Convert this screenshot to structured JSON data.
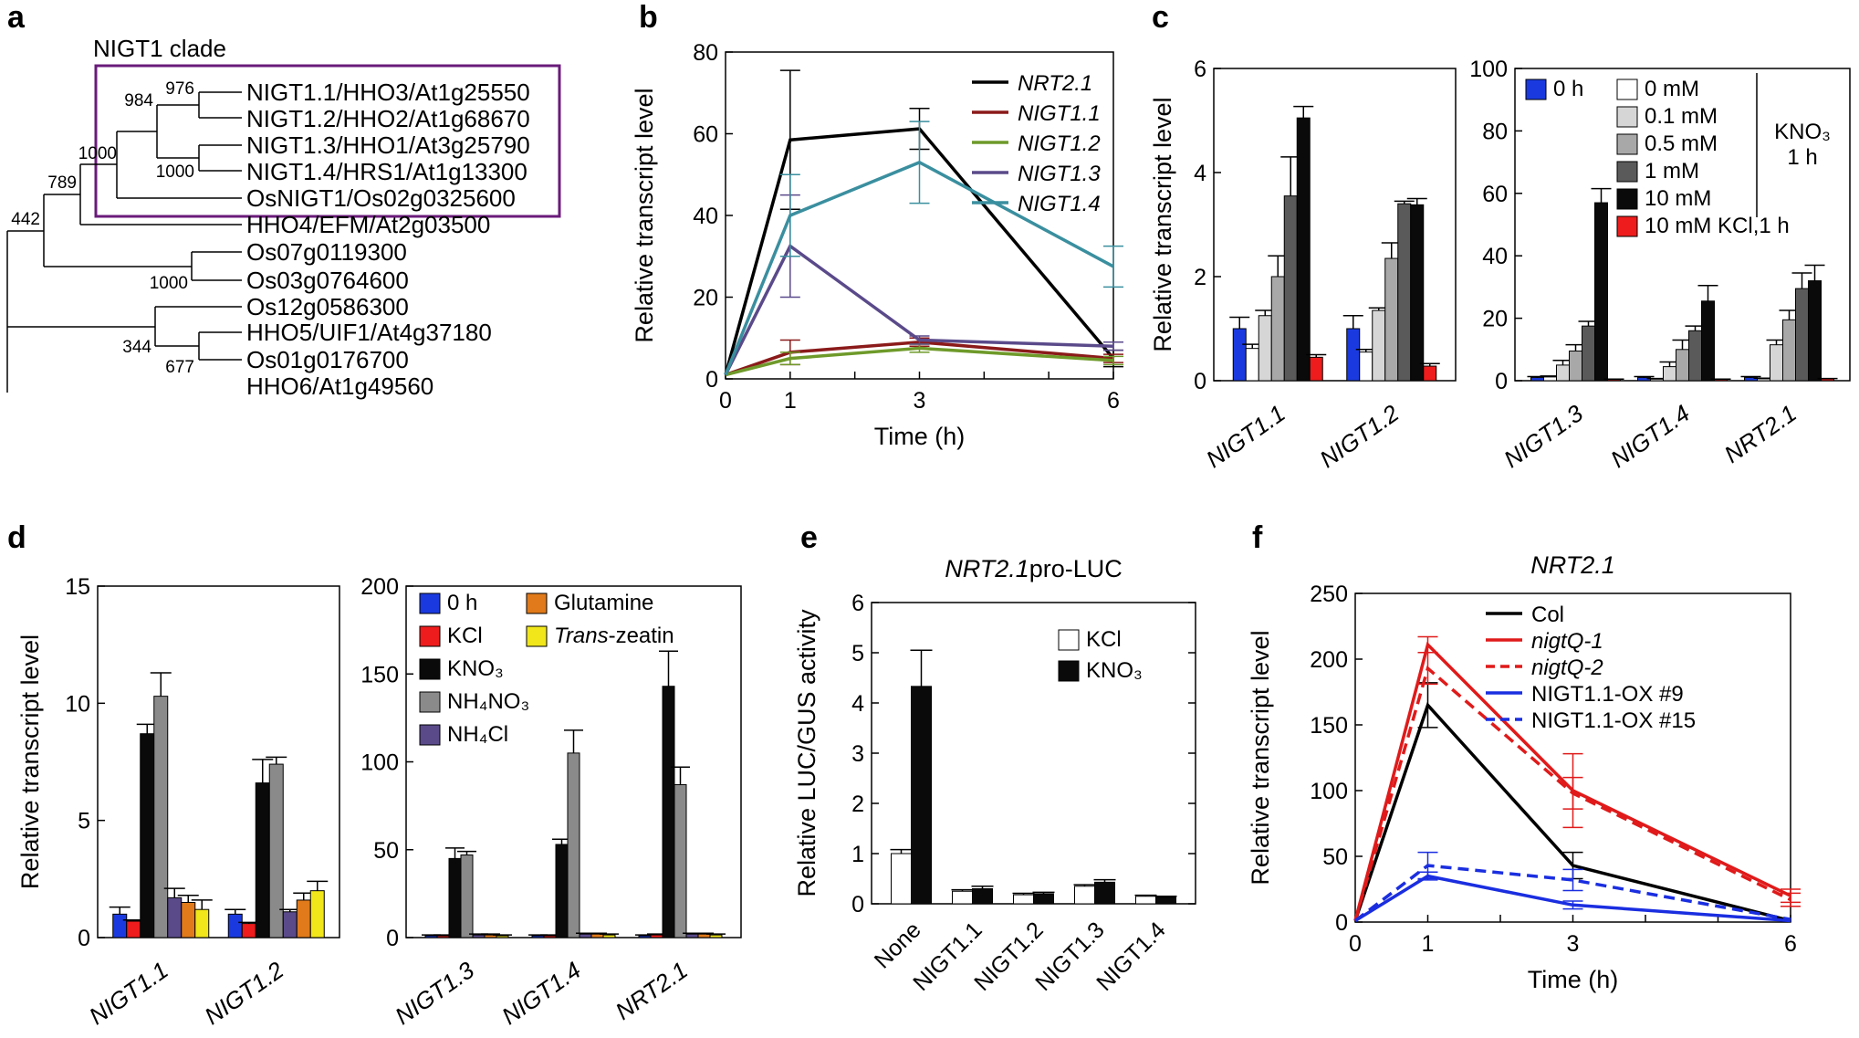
{
  "panel_labels": [
    "a",
    "b",
    "c",
    "d",
    "e",
    "f"
  ],
  "tree": {
    "clade_label": "NIGT1 clade",
    "clade_color": "#6a1b7a",
    "leaves": [
      {
        "name": "NIGT1.1/HHO3/At1g25550",
        "color": "#000000"
      },
      {
        "name": "NIGT1.2/HHO2/At1g68670",
        "color": "#000000"
      },
      {
        "name": "NIGT1.3/HHO1/At3g25790",
        "color": "#000000"
      },
      {
        "name": "NIGT1.4/HRS1/At1g13300",
        "color": "#000000"
      },
      {
        "name": "OsNIGT1/Os02g0325600",
        "color": "#1a1ad6"
      },
      {
        "name": "HHO4/EFM/At2g03500",
        "color": "#000000"
      },
      {
        "name": "Os07g0119300",
        "color": "#1a1ad6"
      },
      {
        "name": "Os03g0764600",
        "color": "#1a1ad6"
      },
      {
        "name": "Os12g0586300",
        "color": "#1a1ad6"
      },
      {
        "name": "HHO5/UIF1/At4g37180",
        "color": "#000000"
      },
      {
        "name": "Os01g0176700",
        "color": "#1a1ad6"
      },
      {
        "name": "HHO6/At1g49560",
        "color": "#000000"
      }
    ],
    "bootstraps": [
      "976",
      "984",
      "1000",
      "1000",
      "789",
      "442",
      "1000",
      "344",
      "677"
    ]
  },
  "chart_data": [
    {
      "id": "b",
      "type": "line",
      "title": "",
      "xlabel": "Time (h)",
      "ylabel": "Relative transcript level",
      "x": [
        0,
        1,
        3,
        6
      ],
      "xlim": [
        0,
        6
      ],
      "ylim": [
        0,
        80
      ],
      "xticks": [
        0,
        1,
        3,
        6
      ],
      "yticks": [
        0,
        20,
        40,
        60,
        80
      ],
      "series": [
        {
          "name": "NRT2.1",
          "color": "#000000",
          "values": [
            1,
            58.5,
            61.2,
            5
          ],
          "err": [
            0,
            17,
            5,
            2
          ]
        },
        {
          "name": "NIGT1.1",
          "color": "#8b1a1a",
          "values": [
            1,
            6.5,
            9,
            5
          ],
          "err": [
            0,
            3,
            1,
            1
          ]
        },
        {
          "name": "NIGT1.2",
          "color": "#6e9a2a",
          "values": [
            1,
            5,
            7.5,
            4.5
          ],
          "err": [
            0,
            1.5,
            1,
            1
          ]
        },
        {
          "name": "NIGT1.3",
          "color": "#5a4a8a",
          "values": [
            1,
            32.5,
            9.5,
            8
          ],
          "err": [
            0,
            12.5,
            1,
            1
          ]
        },
        {
          "name": "NIGT1.4",
          "color": "#3a8f9f",
          "values": [
            1,
            40,
            53,
            27.5
          ],
          "err": [
            0,
            10,
            10,
            5
          ]
        }
      ]
    },
    {
      "id": "c-left",
      "type": "bar",
      "ylabel": "Relative transcript level",
      "categories": [
        "NIGT1.1",
        "NIGT1.2"
      ],
      "ylim": [
        0,
        6
      ],
      "yticks": [
        0,
        2,
        4,
        6
      ],
      "series": [
        {
          "name": "0 h",
          "color": "#1a3adf",
          "values": [
            1.0,
            1.0
          ],
          "err": [
            0.22,
            0.25
          ]
        },
        {
          "name": "0 mM",
          "color": "#ffffff",
          "values": [
            0.62,
            0.55
          ],
          "err": [
            0.08,
            0.05
          ]
        },
        {
          "name": "0.1 mM",
          "color": "#d6d6d6",
          "values": [
            1.25,
            1.35
          ],
          "err": [
            0.1,
            0.05
          ]
        },
        {
          "name": "0.5 mM",
          "color": "#a8a8a8",
          "values": [
            2.0,
            2.35
          ],
          "err": [
            0.4,
            0.3
          ]
        },
        {
          "name": "1 mM",
          "color": "#5a5a5a",
          "values": [
            3.55,
            3.4
          ],
          "err": [
            0.75,
            0.05
          ]
        },
        {
          "name": "10 mM",
          "color": "#0a0a0a",
          "values": [
            5.05,
            3.38
          ],
          "err": [
            0.22,
            0.12
          ]
        },
        {
          "name": "10 mM KCl,1 h",
          "color": "#ee1c1c",
          "values": [
            0.45,
            0.28
          ],
          "err": [
            0.05,
            0.05
          ]
        }
      ]
    },
    {
      "id": "c-right",
      "type": "bar",
      "categories": [
        "NIGT1.3",
        "NIGT1.4",
        "NRT2.1"
      ],
      "ylim": [
        0,
        100
      ],
      "yticks": [
        0,
        20,
        40,
        60,
        80,
        100
      ],
      "legend_note": [
        "KNO₃",
        "1 h"
      ],
      "series": [
        {
          "name": "0 h",
          "color": "#1a3adf",
          "values": [
            1.0,
            1.0,
            1.0
          ],
          "err": [
            0.3,
            0.3,
            0.3
          ]
        },
        {
          "name": "0 mM",
          "color": "#ffffff",
          "values": [
            1.2,
            0.5,
            0.6
          ],
          "err": [
            0.3,
            0.2,
            0.2
          ]
        },
        {
          "name": "0.1 mM",
          "color": "#d6d6d6",
          "values": [
            5,
            4.5,
            11.5
          ],
          "err": [
            1.5,
            1.5,
            1.5
          ]
        },
        {
          "name": "0.5 mM",
          "color": "#a8a8a8",
          "values": [
            9.5,
            10,
            19.5
          ],
          "err": [
            2,
            3,
            3
          ]
        },
        {
          "name": "1 mM",
          "color": "#5a5a5a",
          "values": [
            17.5,
            16,
            29.5
          ],
          "err": [
            1.5,
            1.5,
            5
          ]
        },
        {
          "name": "10 mM",
          "color": "#0a0a0a",
          "values": [
            57,
            25.5,
            32
          ],
          "err": [
            4.5,
            5,
            5
          ]
        },
        {
          "name": "10 mM KCl,1 h",
          "color": "#ee1c1c",
          "values": [
            0.4,
            0.4,
            0.6
          ],
          "err": [
            0.1,
            0.1,
            0.1
          ]
        }
      ]
    },
    {
      "id": "d-left",
      "type": "bar",
      "ylabel": "Relative transcript level",
      "categories": [
        "NIGT1.1",
        "NIGT1.2"
      ],
      "ylim": [
        0,
        15
      ],
      "yticks": [
        0,
        5,
        10,
        15
      ],
      "series": [
        {
          "name": "0 h",
          "color": "#1a3adf",
          "values": [
            1.0,
            1.0
          ],
          "err": [
            0.3,
            0.2
          ]
        },
        {
          "name": "KCl",
          "color": "#ee1c1c",
          "values": [
            0.7,
            0.6
          ],
          "err": [
            0.05,
            0.05
          ]
        },
        {
          "name": "KNO₃",
          "color": "#0a0a0a",
          "values": [
            8.7,
            6.6
          ],
          "err": [
            0.4,
            1.0
          ]
        },
        {
          "name": "NH₄NO₃",
          "color": "#8a8a8a",
          "values": [
            10.3,
            7.4
          ],
          "err": [
            1.0,
            0.3
          ]
        },
        {
          "name": "NH₄Cl",
          "color": "#5a4a8a",
          "values": [
            1.7,
            1.1
          ],
          "err": [
            0.4,
            0.1
          ]
        },
        {
          "name": "Glutamine",
          "color": "#e07a1a",
          "values": [
            1.5,
            1.6
          ],
          "err": [
            0.3,
            0.3
          ]
        },
        {
          "name": "Trans-zeatin",
          "color": "#f0e61a",
          "values": [
            1.2,
            2.0
          ],
          "err": [
            0.4,
            0.4
          ]
        }
      ]
    },
    {
      "id": "d-right",
      "type": "bar",
      "categories": [
        "NIGT1.3",
        "NIGT1.4",
        "NRT2.1"
      ],
      "ylim": [
        0,
        200
      ],
      "yticks": [
        0,
        50,
        100,
        150,
        200
      ],
      "series": [
        {
          "name": "0 h",
          "color": "#1a3adf",
          "values": [
            1,
            1,
            1
          ],
          "err": [
            0.5,
            0.5,
            0.5
          ]
        },
        {
          "name": "KCl",
          "color": "#ee1c1c",
          "values": [
            1,
            1,
            1.5
          ],
          "err": [
            0.5,
            0.5,
            0.5
          ]
        },
        {
          "name": "KNO₃",
          "color": "#0a0a0a",
          "values": [
            45,
            53,
            143
          ],
          "err": [
            6,
            3,
            20
          ]
        },
        {
          "name": "NH₄NO₃",
          "color": "#8a8a8a",
          "values": [
            47,
            105,
            87
          ],
          "err": [
            2,
            13,
            10
          ]
        },
        {
          "name": "NH₄Cl",
          "color": "#5a4a8a",
          "values": [
            1.5,
            2,
            2
          ],
          "err": [
            0.5,
            0.5,
            0.5
          ]
        },
        {
          "name": "Glutamine",
          "color": "#e07a1a",
          "values": [
            1.5,
            2,
            2
          ],
          "err": [
            0.5,
            0.5,
            0.5
          ]
        },
        {
          "name": "Trans-zeatin",
          "color": "#f0e61a",
          "values": [
            1,
            1.5,
            1.5
          ],
          "err": [
            0.5,
            0.5,
            0.5
          ]
        }
      ]
    },
    {
      "id": "e",
      "type": "bar",
      "title": "NRT2.1pro-LUC",
      "ylabel": "Relative LUC/GUS activity",
      "categories": [
        "None",
        "NIGT1.1",
        "NIGT1.2",
        "NIGT1.3",
        "NIGT1.4"
      ],
      "ylim": [
        0,
        6
      ],
      "yticks": [
        0,
        1,
        2,
        3,
        4,
        5,
        6
      ],
      "series": [
        {
          "name": "KCl",
          "color": "#ffffff",
          "values": [
            1.0,
            0.25,
            0.18,
            0.35,
            0.15
          ],
          "err": [
            0.08,
            0.03,
            0.03,
            0.03,
            0.02
          ]
        },
        {
          "name": "KNO₃",
          "color": "#0a0a0a",
          "values": [
            4.33,
            0.3,
            0.2,
            0.43,
            0.13
          ],
          "err": [
            0.72,
            0.05,
            0.03,
            0.05,
            0.02
          ]
        }
      ]
    },
    {
      "id": "f",
      "type": "line",
      "title": "NRT2.1",
      "xlabel": "Time (h)",
      "ylabel": "Relative transcript level",
      "x": [
        0,
        1,
        3,
        6
      ],
      "xlim": [
        0,
        6
      ],
      "ylim": [
        0,
        250
      ],
      "xticks": [
        0,
        1,
        3,
        6
      ],
      "yticks": [
        0,
        50,
        100,
        150,
        200,
        250
      ],
      "series": [
        {
          "name": "Col",
          "color": "#000000",
          "dash": false,
          "values": [
            1,
            165,
            43,
            1
          ],
          "err": [
            0,
            17,
            10,
            0
          ]
        },
        {
          "name": "nigtQ-1",
          "color": "#e01a1a",
          "dash": false,
          "values": [
            1,
            211,
            100,
            20
          ],
          "err": [
            0,
            6,
            28,
            5
          ]
        },
        {
          "name": "nigtQ-2",
          "color": "#e01a1a",
          "dash": true,
          "values": [
            1,
            193,
            98,
            17
          ],
          "err": [
            0,
            12,
            12,
            5
          ]
        },
        {
          "name": "NIGT1.1-OX #9",
          "color": "#1a2ee0",
          "dash": false,
          "values": [
            1,
            35,
            13,
            1
          ],
          "err": [
            0,
            3,
            3,
            0
          ]
        },
        {
          "name": "NIGT1.1-OX #15",
          "color": "#1a2ee0",
          "dash": true,
          "values": [
            1,
            43,
            32,
            2
          ],
          "err": [
            0,
            10,
            8,
            0
          ]
        }
      ]
    }
  ]
}
